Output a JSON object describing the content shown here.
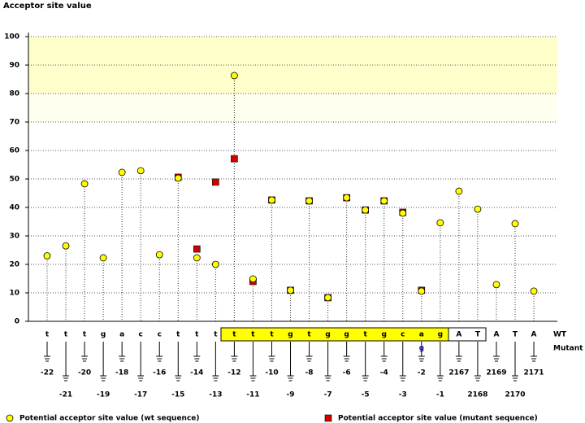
{
  "chart_data": {
    "type": "lollipop",
    "y_label": "Acceptor site value",
    "categories": [
      "-22",
      "-21",
      "-20",
      "-19",
      "-18",
      "-17",
      "-16",
      "-15",
      "-14",
      "-13",
      "-12",
      "-11",
      "-10",
      "-9",
      "-8",
      "-7",
      "-6",
      "-5",
      "-4",
      "-3",
      "-2",
      "-1",
      "2167",
      "2168",
      "2169",
      "2170",
      "2171"
    ],
    "sequence": {
      "wt_label": "WT",
      "mutant_label": "Mutant",
      "wt": [
        "t",
        "t",
        "t",
        "g",
        "a",
        "c",
        "c",
        "t",
        "t",
        "t",
        "t",
        "t",
        "t",
        "g",
        "t",
        "g",
        "g",
        "t",
        "g",
        "c",
        "a",
        "g",
        "A",
        "T",
        "A",
        "T",
        "A"
      ],
      "mutant": [
        null,
        null,
        null,
        null,
        null,
        null,
        null,
        null,
        null,
        null,
        null,
        null,
        null,
        null,
        null,
        null,
        null,
        null,
        null,
        null,
        "g",
        null,
        null,
        null,
        null,
        null,
        null
      ]
    },
    "series": [
      {
        "name": "Potential acceptor site value (mutant sequence)",
        "color": "#d40000",
        "marker": "square",
        "values": [
          null,
          null,
          null,
          null,
          null,
          null,
          null,
          50.6,
          25.4,
          48.9,
          57.1,
          14,
          42.6,
          10.9,
          42.3,
          8.3,
          43.4,
          39.1,
          42.3,
          38.3,
          10.9,
          null,
          null,
          null,
          null,
          null,
          null
        ]
      },
      {
        "name": "Potential acceptor site value (wt sequence)",
        "color": "#ffff00",
        "marker": "circle",
        "values": [
          23,
          26.5,
          48.3,
          22.3,
          52.3,
          52.9,
          23.4,
          50.3,
          22.3,
          20,
          86.3,
          14.9,
          42.6,
          10.9,
          42.3,
          8.3,
          43.4,
          39.1,
          42.3,
          38,
          10.6,
          34.6,
          45.7,
          39.4,
          12.9,
          34.3,
          10.6
        ]
      }
    ],
    "ylim": [
      0,
      100
    ],
    "yticks": [
      0,
      10,
      20,
      30,
      40,
      50,
      60,
      70,
      80,
      90,
      100
    ],
    "grid": true,
    "bands": [
      {
        "from": 80,
        "to": 100,
        "color": "#ffffcc"
      },
      {
        "from": 70,
        "to": 80,
        "color": "#fffff0"
      }
    ]
  }
}
